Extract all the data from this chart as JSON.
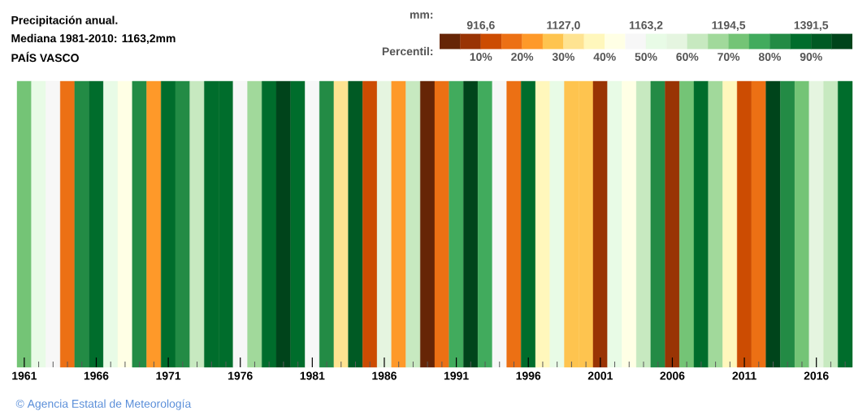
{
  "chart_data": {
    "type": "heatmap",
    "title": "Precipitación anual.",
    "subtitle": "Mediana 1981-2010: 1163,2mm",
    "categories": [
      "1961",
      null,
      null,
      null,
      null,
      "1966",
      null,
      null,
      null,
      null,
      "1971",
      null,
      null,
      null,
      null,
      "1976",
      null,
      null,
      null,
      null,
      "1981",
      null,
      null,
      null,
      null,
      "1986",
      null,
      null,
      null,
      null,
      "1991",
      null,
      null,
      null,
      null,
      "1996",
      null,
      null,
      null,
      null,
      "2001",
      null,
      null,
      null,
      null,
      "2006",
      null,
      null,
      null,
      null,
      "2011",
      null,
      null,
      null,
      null,
      "2016",
      null,
      null
    ],
    "y_categories": [
      null
    ],
    "cells": [
      [
        72.5,
        52.5,
        47.5,
        17.5,
        82.5,
        87.5,
        52.5,
        42.5,
        82.5,
        22.5,
        87.5,
        82.5,
        62.5,
        87.5,
        87.5,
        47.5,
        67.5,
        87.5,
        97.5,
        87.5,
        47.5,
        82.5,
        32.5,
        92.5,
        12.5,
        57.5,
        22.5,
        62.5,
        2.5,
        17.5,
        77.5,
        97.5,
        77.5,
        47.5,
        17.5,
        87.5,
        37.5,
        52.5,
        27.5,
        27.5,
        7.5,
        52.5,
        42.5,
        62.5,
        82.5,
        7.5,
        72.5,
        87.5,
        67.5,
        37.5,
        12.5,
        17.5,
        97.5,
        82.5,
        72.5,
        57.5,
        62.5,
        87.5
      ]
    ],
    "colors": [
      "#662506",
      "#993404",
      "#cc4c02",
      "#ec7014",
      "#fe9929",
      "#fec44f",
      "#fee391",
      "#fff7bc",
      "#ffffe5",
      "#f7f7f7",
      "#e8fbe6",
      "#e5f5e0",
      "#c7e9c0",
      "#a1d99b",
      "#74c476",
      "#41ab5d",
      "#238b45",
      "#006d2c",
      "#005a24",
      "#00441b"
    ],
    "clim": [
      0,
      100
    ],
    "cticks": [
      {
        "value": 10,
        "label": "10%"
      },
      {
        "value": 20,
        "label": "20%"
      },
      {
        "value": 30,
        "label": "30%"
      },
      {
        "value": 40,
        "label": "40%"
      },
      {
        "value": 50,
        "label": "50%"
      },
      {
        "value": 60,
        "label": "60%"
      },
      {
        "value": 70,
        "label": "70%"
      },
      {
        "value": 80,
        "label": "80%"
      },
      {
        "value": 90,
        "label": "90%"
      }
    ],
    "annotations": [
      "PAÍS VASCO",
      "mm:",
      "Percentil:",
      "© Agencia Estatal de Meteorología",
      "916,6",
      "1127,0",
      "1163,2",
      "1194,5",
      "1391,5"
    ]
  }
}
